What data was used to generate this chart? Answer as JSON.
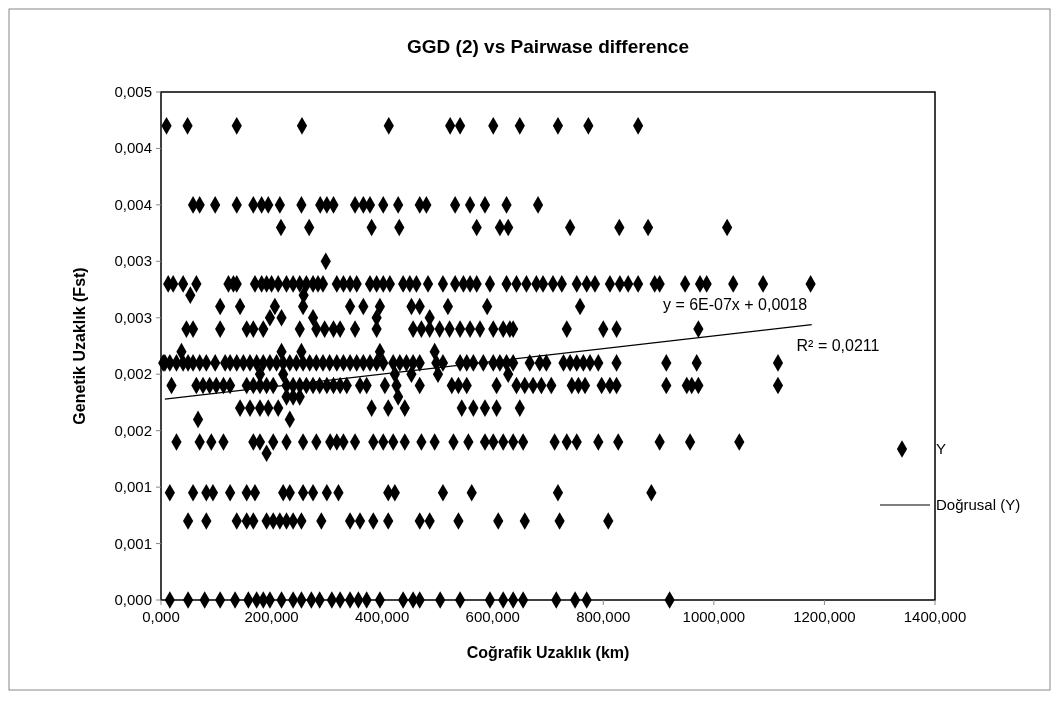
{
  "chart_data": {
    "type": "scatter",
    "title": "GGD (2) vs Pairwase difference",
    "xlabel": "Coğrafik Uzaklık (km)",
    "ylabel": "Genetik Uzaklık (Fst)",
    "xlim": [
      0,
      1400
    ],
    "ylim": [
      0,
      0.0045
    ],
    "xticks": [
      {
        "value": 0,
        "label": "0,000"
      },
      {
        "value": 200,
        "label": "200,000"
      },
      {
        "value": 400,
        "label": "400,000"
      },
      {
        "value": 600,
        "label": "600,000"
      },
      {
        "value": 800,
        "label": "800,000"
      },
      {
        "value": 1000,
        "label": "1000,000"
      },
      {
        "value": 1200,
        "label": "1200,000"
      },
      {
        "value": 1400,
        "label": "1400,000"
      }
    ],
    "yticks": [
      {
        "value": 0,
        "label": "0,000"
      },
      {
        "value": 0.0005,
        "label": "0,001"
      },
      {
        "value": 0.001,
        "label": "0,001"
      },
      {
        "value": 0.0015,
        "label": "0,002"
      },
      {
        "value": 0.002,
        "label": "0,002"
      },
      {
        "value": 0.0025,
        "label": "0,003"
      },
      {
        "value": 0.003,
        "label": "0,003"
      },
      {
        "value": 0.0035,
        "label": "0,004"
      },
      {
        "value": 0.004,
        "label": "0,004"
      },
      {
        "value": 0.0045,
        "label": "0,005"
      }
    ],
    "grid": false,
    "legend": "right",
    "marker": "diamond",
    "annotations": [
      "y = 6E-07x + 0,0018",
      "R² = 0,0211"
    ],
    "series": [
      {
        "name": "Y",
        "color": "#000000",
        "x": [
          10,
          48,
          137,
          255,
          412,
          523,
          541,
          601,
          649,
          718,
          773,
          863,
          58,
          70,
          98,
          137,
          167,
          182,
          194,
          215,
          254,
          288,
          300,
          312,
          351,
          366,
          378,
          402,
          429,
          468,
          480,
          532,
          559,
          586,
          625,
          682,
          217,
          268,
          381,
          431,
          571,
          613,
          628,
          740,
          829,
          881,
          1024,
          298,
          13,
          22,
          40,
          64,
          122,
          131,
          137,
          170,
          182,
          191,
          200,
          212,
          227,
          239,
          251,
          263,
          275,
          284,
          293,
          318,
          330,
          342,
          354,
          378,
          390,
          402,
          414,
          438,
          450,
          462,
          483,
          510,
          532,
          547,
          559,
          571,
          595,
          625,
          643,
          661,
          679,
          691,
          709,
          725,
          752,
          770,
          785,
          812,
          830,
          845,
          863,
          893,
          902,
          948,
          975,
          987,
          1035,
          1089,
          1175,
          53,
          258,
          107,
          143,
          206,
          257,
          342,
          366,
          396,
          453,
          468,
          519,
          590,
          758,
          197,
          218,
          275,
          390,
          486,
          46,
          58,
          107,
          155,
          167,
          185,
          251,
          281,
          296,
          312,
          324,
          351,
          390,
          456,
          471,
          486,
          504,
          522,
          541,
          559,
          577,
          601,
          619,
          631,
          637,
          734,
          800,
          824,
          972,
          37,
          218,
          254,
          396,
          495,
          4,
          7,
          16,
          28,
          40,
          49,
          58,
          70,
          82,
          98,
          116,
          125,
          137,
          149,
          161,
          173,
          185,
          197,
          209,
          221,
          233,
          245,
          257,
          269,
          281,
          293,
          305,
          318,
          330,
          342,
          354,
          366,
          378,
          390,
          402,
          420,
          432,
          444,
          456,
          468,
          498,
          510,
          541,
          553,
          565,
          583,
          601,
          613,
          625,
          637,
          667,
          685,
          697,
          728,
          740,
          752,
          764,
          776,
          791,
          824,
          914,
          969,
          1116,
          179,
          221,
          423,
          453,
          501,
          628,
          19,
          64,
          76,
          88,
          100,
          113,
          125,
          155,
          167,
          179,
          191,
          203,
          227,
          239,
          251,
          263,
          275,
          287,
          300,
          312,
          324,
          336,
          360,
          372,
          405,
          426,
          468,
          526,
          538,
          553,
          607,
          643,
          658,
          673,
          688,
          706,
          743,
          755,
          767,
          797,
          812,
          824,
          914,
          951,
          960,
          972,
          1116,
          227,
          239,
          251,
          429,
          143,
          161,
          179,
          194,
          212,
          381,
          411,
          441,
          544,
          565,
          586,
          607,
          649,
          67,
          233,
          28,
          70,
          91,
          113,
          167,
          179,
          203,
          227,
          257,
          281,
          306,
          318,
          330,
          351,
          384,
          402,
          420,
          441,
          471,
          495,
          529,
          556,
          586,
          601,
          619,
          637,
          655,
          712,
          734,
          752,
          791,
          827,
          902,
          957,
          1046,
          191,
          16,
          58,
          82,
          94,
          125,
          155,
          170,
          221,
          233,
          257,
          275,
          300,
          321,
          411,
          423,
          510,
          562,
          718,
          887,
          49,
          82,
          137,
          155,
          167,
          191,
          203,
          215,
          227,
          239,
          254,
          290,
          342,
          360,
          384,
          411,
          468,
          486,
          538,
          610,
          658,
          721,
          809,
          16,
          49,
          79,
          107,
          134,
          158,
          173,
          185,
          197,
          218,
          239,
          254,
          272,
          287,
          309,
          324,
          342,
          357,
          372,
          396,
          438,
          456,
          468,
          505,
          541,
          595,
          619,
          637,
          655,
          715,
          749,
          770,
          920
        ],
        "values": [
          0.0042,
          0.0042,
          0.0042,
          0.0042,
          0.0042,
          0.0042,
          0.0042,
          0.0042,
          0.0042,
          0.0042,
          0.0042,
          0.0042,
          0.0035,
          0.0035,
          0.0035,
          0.0035,
          0.0035,
          0.0035,
          0.0035,
          0.0035,
          0.0035,
          0.0035,
          0.0035,
          0.0035,
          0.0035,
          0.0035,
          0.0035,
          0.0035,
          0.0035,
          0.0035,
          0.0035,
          0.0035,
          0.0035,
          0.0035,
          0.0035,
          0.0035,
          0.0033,
          0.0033,
          0.0033,
          0.0033,
          0.0033,
          0.0033,
          0.0033,
          0.0033,
          0.0033,
          0.0033,
          0.0033,
          0.003,
          0.0028,
          0.0028,
          0.0028,
          0.0028,
          0.0028,
          0.0028,
          0.0028,
          0.0028,
          0.0028,
          0.0028,
          0.0028,
          0.0028,
          0.0028,
          0.0028,
          0.0028,
          0.0028,
          0.0028,
          0.0028,
          0.0028,
          0.0028,
          0.0028,
          0.0028,
          0.0028,
          0.0028,
          0.0028,
          0.0028,
          0.0028,
          0.0028,
          0.0028,
          0.0028,
          0.0028,
          0.0028,
          0.0028,
          0.0028,
          0.0028,
          0.0028,
          0.0028,
          0.0028,
          0.0028,
          0.0028,
          0.0028,
          0.0028,
          0.0028,
          0.0028,
          0.0028,
          0.0028,
          0.0028,
          0.0028,
          0.0028,
          0.0028,
          0.0028,
          0.0028,
          0.0028,
          0.0028,
          0.0028,
          0.0028,
          0.0028,
          0.0028,
          0.0028,
          0.0027,
          0.0027,
          0.0026,
          0.0026,
          0.0026,
          0.0026,
          0.0026,
          0.0026,
          0.0026,
          0.0026,
          0.0026,
          0.0026,
          0.0026,
          0.0026,
          0.0025,
          0.0025,
          0.0025,
          0.0025,
          0.0025,
          0.0024,
          0.0024,
          0.0024,
          0.0024,
          0.0024,
          0.0024,
          0.0024,
          0.0024,
          0.0024,
          0.0024,
          0.0024,
          0.0024,
          0.0024,
          0.0024,
          0.0024,
          0.0024,
          0.0024,
          0.0024,
          0.0024,
          0.0024,
          0.0024,
          0.0024,
          0.0024,
          0.0024,
          0.0024,
          0.0024,
          0.0024,
          0.0024,
          0.0024,
          0.0022,
          0.0022,
          0.0022,
          0.0022,
          0.0022,
          0.0021,
          0.0021,
          0.0021,
          0.0021,
          0.0021,
          0.0021,
          0.0021,
          0.0021,
          0.0021,
          0.0021,
          0.0021,
          0.0021,
          0.0021,
          0.0021,
          0.0021,
          0.0021,
          0.0021,
          0.0021,
          0.0021,
          0.0021,
          0.0021,
          0.0021,
          0.0021,
          0.0021,
          0.0021,
          0.0021,
          0.0021,
          0.0021,
          0.0021,
          0.0021,
          0.0021,
          0.0021,
          0.0021,
          0.0021,
          0.0021,
          0.0021,
          0.0021,
          0.0021,
          0.0021,
          0.0021,
          0.0021,
          0.0021,
          0.0021,
          0.0021,
          0.0021,
          0.0021,
          0.0021,
          0.0021,
          0.0021,
          0.0021,
          0.0021,
          0.0021,
          0.0021,
          0.0021,
          0.0021,
          0.0021,
          0.0021,
          0.0021,
          0.0021,
          0.0021,
          0.0021,
          0.0021,
          0.0021,
          0.002,
          0.002,
          0.002,
          0.002,
          0.002,
          0.002,
          0.0019,
          0.0019,
          0.0019,
          0.0019,
          0.0019,
          0.0019,
          0.0019,
          0.0019,
          0.0019,
          0.0019,
          0.0019,
          0.0019,
          0.0019,
          0.0019,
          0.0019,
          0.0019,
          0.0019,
          0.0019,
          0.0019,
          0.0019,
          0.0019,
          0.0019,
          0.0019,
          0.0019,
          0.0019,
          0.0019,
          0.0019,
          0.0019,
          0.0019,
          0.0019,
          0.0019,
          0.0019,
          0.0019,
          0.0019,
          0.0019,
          0.0019,
          0.0019,
          0.0019,
          0.0019,
          0.0019,
          0.0019,
          0.0019,
          0.0019,
          0.0019,
          0.0019,
          0.0019,
          0.0019,
          0.0018,
          0.0018,
          0.0018,
          0.0018,
          0.0017,
          0.0017,
          0.0017,
          0.0017,
          0.0017,
          0.0017,
          0.0017,
          0.0017,
          0.0017,
          0.0017,
          0.0017,
          0.0017,
          0.0017,
          0.0016,
          0.0016,
          0.0014,
          0.0014,
          0.0014,
          0.0014,
          0.0014,
          0.0014,
          0.0014,
          0.0014,
          0.0014,
          0.0014,
          0.0014,
          0.0014,
          0.0014,
          0.0014,
          0.0014,
          0.0014,
          0.0014,
          0.0014,
          0.0014,
          0.0014,
          0.0014,
          0.0014,
          0.0014,
          0.0014,
          0.0014,
          0.0014,
          0.0014,
          0.0014,
          0.0014,
          0.0014,
          0.0014,
          0.0014,
          0.0014,
          0.0014,
          0.0014,
          0.0013,
          0.00095,
          0.00095,
          0.00095,
          0.00095,
          0.00095,
          0.00095,
          0.00095,
          0.00095,
          0.00095,
          0.00095,
          0.00095,
          0.00095,
          0.00095,
          0.00095,
          0.00095,
          0.00095,
          0.00095,
          0.00095,
          0.00095,
          0.0007,
          0.0007,
          0.0007,
          0.0007,
          0.0007,
          0.0007,
          0.0007,
          0.0007,
          0.0007,
          0.0007,
          0.0007,
          0.0007,
          0.0007,
          0.0007,
          0.0007,
          0.0007,
          0.0007,
          0.0007,
          0.0007,
          0.0007,
          0.0007,
          0.0007,
          0.0007,
          0,
          0,
          0,
          0,
          0,
          0,
          0,
          0,
          0,
          0,
          0,
          0,
          0,
          0,
          0,
          0,
          0,
          0,
          0,
          0,
          0,
          0,
          0,
          0,
          0,
          0,
          0,
          0,
          0,
          0,
          0,
          0,
          0
        ]
      },
      {
        "name": "Doğrusal (Y)",
        "type": "line",
        "marker": "none",
        "color": "#000000",
        "x": [
          7,
          1177
        ],
        "values": [
          0.00178,
          0.00244
        ]
      }
    ]
  }
}
